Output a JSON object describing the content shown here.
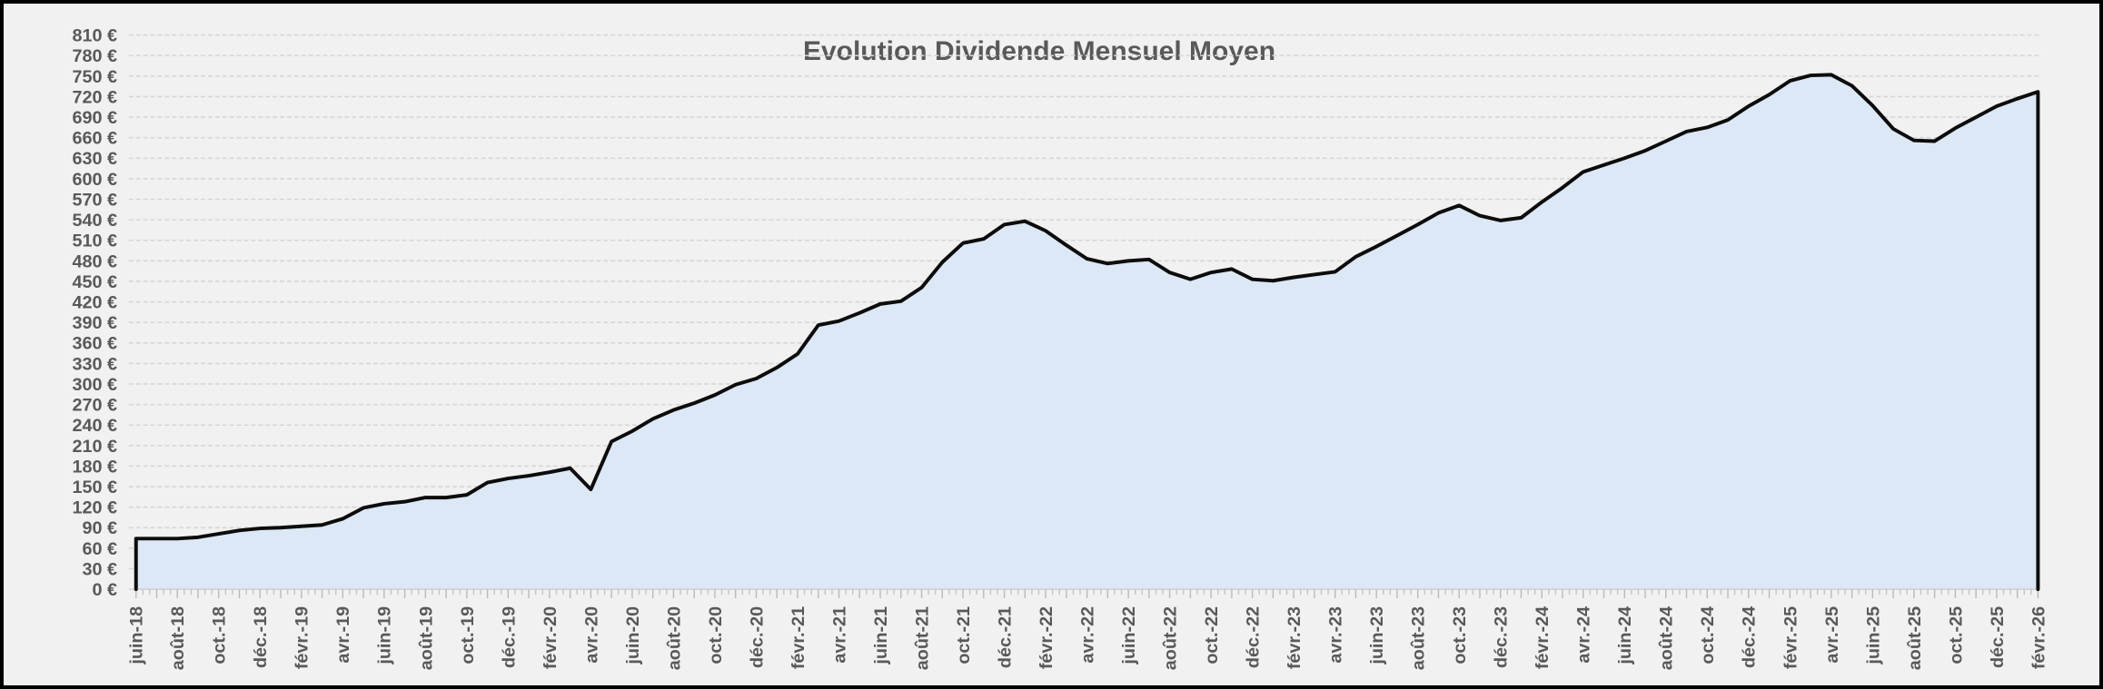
{
  "title": "Evolution Dividende Mensuel Moyen",
  "chart_data": {
    "type": "area",
    "title": "Evolution Dividende Mensuel Moyen",
    "x_start": "juin-18",
    "x_end": "févr.-26",
    "x_frequency": "monthly",
    "values": [
      74,
      74,
      74,
      76,
      81,
      86,
      89,
      90,
      92,
      94,
      103,
      119,
      125,
      128,
      134,
      134,
      138,
      156,
      162,
      166,
      171,
      177,
      146,
      216,
      231,
      249,
      262,
      272,
      284,
      299,
      308,
      324,
      344,
      386,
      392,
      404,
      417,
      421,
      441,
      478,
      506,
      512,
      533,
      538,
      524,
      503,
      483,
      476,
      480,
      482,
      463,
      453,
      463,
      468,
      453,
      451,
      456,
      460,
      464,
      486,
      501,
      517,
      533,
      550,
      561,
      546,
      539,
      543,
      566,
      587,
      610,
      620,
      630,
      641,
      655,
      669,
      675,
      686,
      706,
      723,
      743,
      751,
      752,
      736,
      707,
      673,
      656,
      655,
      674,
      690,
      706,
      717,
      727
    ],
    "x_tick_labels": [
      "juin-18",
      "août-18",
      "oct.-18",
      "déc.-18",
      "févr.-19",
      "avr.-19",
      "juin-19",
      "août-19",
      "oct.-19",
      "déc.-19",
      "févr.-20",
      "avr.-20",
      "juin-20",
      "août-20",
      "oct.-20",
      "déc.-20",
      "févr.-21",
      "avr.-21",
      "juin-21",
      "août-21",
      "oct.-21",
      "déc.-21",
      "févr.-22",
      "avr.-22",
      "juin-22",
      "août-22",
      "oct.-22",
      "déc.-22",
      "févr.-23",
      "avr.-23",
      "juin-23",
      "août-23",
      "oct.-23",
      "déc.-23",
      "févr.-24",
      "avr.-24",
      "juin-24",
      "août-24",
      "oct.-24",
      "déc.-24",
      "févr.-25",
      "avr.-25",
      "juin-25",
      "août-25",
      "oct.-25",
      "déc.-25",
      "févr.-26"
    ],
    "y_tick_labels": [
      "0 €",
      "30 €",
      "60 €",
      "90 €",
      "120 €",
      "150 €",
      "180 €",
      "210 €",
      "240 €",
      "270 €",
      "300 €",
      "330 €",
      "360 €",
      "390 €",
      "420 €",
      "450 €",
      "480 €",
      "510 €",
      "540 €",
      "570 €",
      "600 €",
      "630 €",
      "660 €",
      "690 €",
      "720 €",
      "750 €",
      "780 €",
      "810 €"
    ],
    "ylim": [
      0,
      810
    ],
    "y_step": 30,
    "xlabel": "",
    "ylabel": "",
    "legend": "none",
    "grid": "dashed-horizontal",
    "colors": {
      "area_fill": "#dce8f5",
      "line": "#0c0c0c",
      "background": "#f1f1f1",
      "gridline": "#d6d6d6",
      "tick": "#c4c4c4",
      "label": "#595959",
      "title": "#595959",
      "frame_border": "#000000"
    }
  }
}
